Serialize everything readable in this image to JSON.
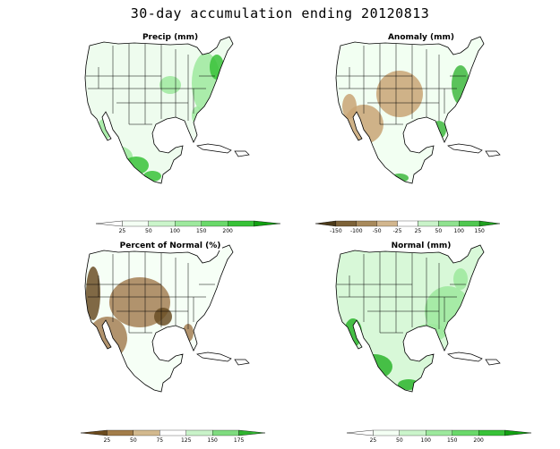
{
  "title": "30-day accumulation ending 20120813",
  "panels": [
    {
      "id": "precip",
      "title": "Precip (mm)",
      "legend": {
        "labels": [
          "25",
          "50",
          "100",
          "150",
          "200"
        ],
        "colors": [
          "#ffffff",
          "#f4fff4",
          "#cbf5cb",
          "#9de99d",
          "#6ad96a",
          "#38c238",
          "#12a012"
        ],
        "style": "open-arrow"
      },
      "fills": {
        "base": "#eefcee",
        "mid": "#9de99d",
        "dark": "#38c238"
      }
    },
    {
      "id": "anomaly",
      "title": "Anomaly (mm)",
      "legend": {
        "labels": [
          "-150",
          "-100",
          "-50",
          "-25",
          "25",
          "50",
          "100",
          "150"
        ],
        "colors": [
          "#4c3a1a",
          "#7d6238",
          "#a88a5c",
          "#d2b68e",
          "#ffffff",
          "#c9f3c9",
          "#8fe28f",
          "#50c850",
          "#20a020"
        ],
        "style": "double-arrow"
      },
      "fills": {
        "base": "#f2fff2",
        "mid": "#c9a576",
        "dark": "#3fb83f"
      }
    },
    {
      "id": "percent-normal",
      "title": "Percent of Normal (%)",
      "legend": {
        "labels": [
          "25",
          "50",
          "75",
          "125",
          "150",
          "175"
        ],
        "colors": [
          "#6b4a1e",
          "#a37d4a",
          "#d3b98e",
          "#ffffff",
          "#c9f3c9",
          "#7fdc7f",
          "#2fb32f"
        ],
        "style": "double-arrow"
      },
      "fills": {
        "base": "#f6fff6",
        "mid": "#a58055",
        "dark": "#6b4f26"
      }
    },
    {
      "id": "normal",
      "title": "Normal (mm)",
      "legend": {
        "labels": [
          "25",
          "50",
          "100",
          "150",
          "200"
        ],
        "colors": [
          "#ffffff",
          "#f4fff4",
          "#cbf5cb",
          "#9de99d",
          "#6ad96a",
          "#38c238",
          "#12a012"
        ],
        "style": "open-arrow"
      },
      "fills": {
        "base": "#d8f8d8",
        "mid": "#9de99d",
        "dark": "#2db52d"
      }
    }
  ]
}
